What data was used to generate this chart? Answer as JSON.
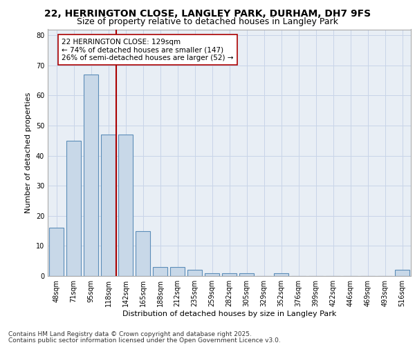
{
  "title1": "22, HERRINGTON CLOSE, LANGLEY PARK, DURHAM, DH7 9FS",
  "title2": "Size of property relative to detached houses in Langley Park",
  "xlabel": "Distribution of detached houses by size in Langley Park",
  "ylabel": "Number of detached properties",
  "categories": [
    "48sqm",
    "71sqm",
    "95sqm",
    "118sqm",
    "142sqm",
    "165sqm",
    "188sqm",
    "212sqm",
    "235sqm",
    "259sqm",
    "282sqm",
    "305sqm",
    "329sqm",
    "352sqm",
    "376sqm",
    "399sqm",
    "422sqm",
    "446sqm",
    "469sqm",
    "493sqm",
    "516sqm"
  ],
  "values": [
    16,
    45,
    67,
    47,
    47,
    15,
    3,
    3,
    2,
    1,
    1,
    1,
    0,
    1,
    0,
    0,
    0,
    0,
    0,
    0,
    2
  ],
  "bar_color": "#c8d8e8",
  "bar_edge_color": "#5b8db8",
  "bar_linewidth": 0.8,
  "vline_color": "#aa0000",
  "annotation_text": "22 HERRINGTON CLOSE: 129sqm\n← 74% of detached houses are smaller (147)\n26% of semi-detached houses are larger (52) →",
  "annotation_box_color": "#ffffff",
  "annotation_box_edge": "#aa0000",
  "ylim": [
    0,
    82
  ],
  "yticks": [
    0,
    10,
    20,
    30,
    40,
    50,
    60,
    70,
    80
  ],
  "grid_color": "#c8d4e8",
  "bg_color": "#e8eef5",
  "footnote1": "Contains HM Land Registry data © Crown copyright and database right 2025.",
  "footnote2": "Contains public sector information licensed under the Open Government Licence v3.0.",
  "title_fontsize": 10,
  "subtitle_fontsize": 9,
  "axis_label_fontsize": 8,
  "tick_fontsize": 7,
  "annot_fontsize": 7.5,
  "footnote_fontsize": 6.5
}
